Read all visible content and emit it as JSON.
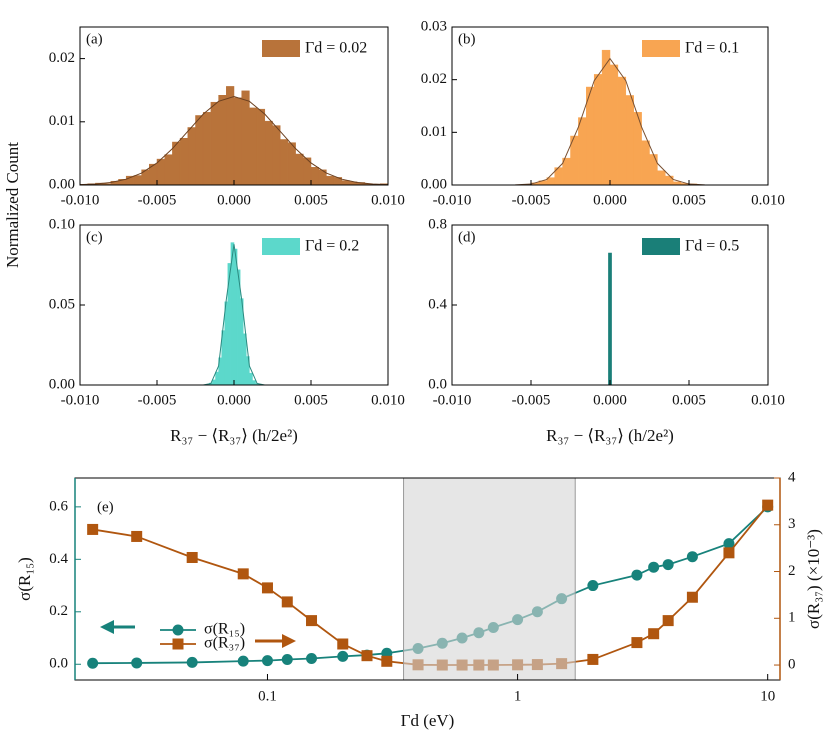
{
  "chart_data": [
    {
      "type": "histogram",
      "panel_label": "(a)",
      "ylabel": "Normalized Count",
      "bins": [
        -0.01,
        -0.0095,
        -0.009,
        -0.0085,
        -0.008,
        -0.0075,
        -0.007,
        -0.0065,
        -0.006,
        -0.0055,
        -0.005,
        -0.0045,
        -0.004,
        -0.0035,
        -0.003,
        -0.0025,
        -0.002,
        -0.0015,
        -0.001,
        -0.0005,
        0,
        0.0005,
        0.001,
        0.0015,
        0.002,
        0.0025,
        0.003,
        0.0035,
        0.004,
        0.0045,
        0.005,
        0.0055,
        0.006,
        0.0065,
        0.007,
        0.0075,
        0.008,
        0.0085,
        0.009,
        0.0095,
        0.01
      ],
      "series": [
        {
          "name": "Γd = 0.02",
          "color": "#b8733a",
          "values": [
            0.0001,
            0.0002,
            0.0003,
            0.0002,
            0.0006,
            0.0009,
            0.0014,
            0.0015,
            0.0024,
            0.0033,
            0.0041,
            0.0048,
            0.0068,
            0.0074,
            0.0091,
            0.011,
            0.0115,
            0.0131,
            0.0142,
            0.0156,
            0.0138,
            0.0149,
            0.0122,
            0.012,
            0.0101,
            0.0094,
            0.0072,
            0.0067,
            0.0049,
            0.0043,
            0.0028,
            0.0024,
            0.0014,
            0.0012,
            0.0007,
            0.0005,
            0.0004,
            0.0002,
            0.0001,
            0.0002
          ]
        }
      ],
      "fit": {
        "color": "#6b4020",
        "x": [
          -0.01,
          -0.009,
          -0.008,
          -0.007,
          -0.006,
          -0.005,
          -0.004,
          -0.003,
          -0.002,
          -0.001,
          0,
          0.001,
          0.002,
          0.003,
          0.004,
          0.005,
          0.006,
          0.007,
          0.008,
          0.009,
          0.01
        ],
        "values": [
          5e-05,
          0.00016,
          0.0004,
          0.00092,
          0.00189,
          0.00349,
          0.00575,
          0.00849,
          0.01121,
          0.01324,
          0.014,
          0.01324,
          0.01121,
          0.00849,
          0.00575,
          0.00349,
          0.00189,
          0.00092,
          0.0004,
          0.00016,
          5e-05
        ]
      },
      "xlim": [
        -0.01,
        0.01
      ],
      "xticks": [
        {
          "value": -0.01,
          "label": "-0.010"
        },
        {
          "value": -0.005,
          "label": "-0.005"
        },
        {
          "value": 0,
          "label": "0.000"
        },
        {
          "value": 0.005,
          "label": "0.005"
        },
        {
          "value": 0.01,
          "label": "0.010"
        }
      ],
      "ylim": [
        0,
        0.025
      ],
      "yticks": [
        {
          "value": 0,
          "label": "0.00"
        },
        {
          "value": 0.01,
          "label": "0.01"
        },
        {
          "value": 0.02,
          "label": "0.02"
        }
      ]
    },
    {
      "type": "histogram",
      "panel_label": "(b)",
      "bins": [
        -0.0055,
        -0.005,
        -0.0045,
        -0.004,
        -0.0035,
        -0.003,
        -0.0025,
        -0.002,
        -0.0015,
        -0.001,
        -0.0005,
        0,
        0.0005,
        0.001,
        0.0015,
        0.002,
        0.0025,
        0.003,
        0.0035,
        0.004,
        0.0045,
        0.005,
        0.0055
      ],
      "series": [
        {
          "name": "Γd = 0.1",
          "color": "#f8a552",
          "values": [
            0.0001,
            0.0004,
            0.0008,
            0.0014,
            0.0033,
            0.0051,
            0.0093,
            0.0128,
            0.0186,
            0.021,
            0.0256,
            0.0228,
            0.0205,
            0.017,
            0.0138,
            0.0084,
            0.0058,
            0.0027,
            0.0017,
            0.0006,
            0.0003,
            0.0002
          ]
        }
      ],
      "fit": {
        "color": "#7a5030",
        "x": [
          -0.006,
          -0.005,
          -0.004,
          -0.003,
          -0.002,
          -0.001,
          0,
          0.001,
          0.002,
          0.003,
          0.004,
          0.005,
          0.006
        ],
        "values": [
          2e-05,
          0.00018,
          0.00105,
          0.0041,
          0.011,
          0.0198,
          0.024,
          0.0198,
          0.011,
          0.0041,
          0.00105,
          0.00018,
          2e-05
        ]
      },
      "xlim": [
        -0.01,
        0.01
      ],
      "xticks": [
        {
          "value": -0.01,
          "label": "-0.010"
        },
        {
          "value": -0.005,
          "label": "-0.005"
        },
        {
          "value": 0,
          "label": "0.000"
        },
        {
          "value": 0.005,
          "label": "0.005"
        },
        {
          "value": 0.01,
          "label": "0.010"
        }
      ],
      "ylim": [
        0,
        0.03
      ],
      "yticks": [
        {
          "value": 0,
          "label": "0.00"
        },
        {
          "value": 0.01,
          "label": "0.01"
        },
        {
          "value": 0.02,
          "label": "0.02"
        },
        {
          "value": 0.03,
          "label": "0.03"
        }
      ]
    },
    {
      "type": "histogram",
      "panel_label": "(c)",
      "xlabel": "R₃₇ − ⟨R₃₇⟩ (h/2e²)",
      "bins": [
        -0.0018,
        -0.0016,
        -0.0014,
        -0.0012,
        -0.001,
        -0.0008,
        -0.0006,
        -0.0004,
        -0.0002,
        0,
        0.0002,
        0.0004,
        0.0006,
        0.0008,
        0.001,
        0.0012,
        0.0014,
        0.0016,
        0.0018
      ],
      "series": [
        {
          "name": "Γd = 0.2",
          "color": "#5cd8cb",
          "values": [
            0.0003,
            0.0012,
            0.0032,
            0.0081,
            0.017,
            0.034,
            0.052,
            0.076,
            0.089,
            0.085,
            0.072,
            0.054,
            0.032,
            0.0178,
            0.0074,
            0.0028,
            0.0009,
            0.0002
          ]
        }
      ],
      "fit": {
        "color": "#2a8a80",
        "x": [
          -0.002,
          -0.0015,
          -0.001,
          -0.0005,
          0,
          0.0005,
          0.001,
          0.0015,
          0.002
        ],
        "values": [
          3e-05,
          0.00098,
          0.0119,
          0.0534,
          0.088,
          0.0534,
          0.0119,
          0.00098,
          3e-05
        ]
      },
      "xlim": [
        -0.01,
        0.01
      ],
      "xticks": [
        {
          "value": -0.01,
          "label": "-0.010"
        },
        {
          "value": -0.005,
          "label": "-0.005"
        },
        {
          "value": 0,
          "label": "0.000"
        },
        {
          "value": 0.005,
          "label": "0.005"
        },
        {
          "value": 0.01,
          "label": "0.010"
        }
      ],
      "ylim": [
        0,
        0.1
      ],
      "yticks": [
        {
          "value": 0,
          "label": "0.00"
        },
        {
          "value": 0.05,
          "label": "0.05"
        },
        {
          "value": 0.1,
          "label": "0.10"
        }
      ]
    },
    {
      "type": "histogram",
      "panel_label": "(d)",
      "xlabel": "R₃₇ − ⟨R₃₇⟩ (h/2e²)",
      "bins": [
        -0.0001,
        0.0001
      ],
      "series": [
        {
          "name": "Γd = 0.5",
          "color": "#1a7f78",
          "values": [
            0.66
          ]
        }
      ],
      "xlim": [
        -0.01,
        0.01
      ],
      "xticks": [
        {
          "value": -0.01,
          "label": "-0.010"
        },
        {
          "value": -0.005,
          "label": "-0.005"
        },
        {
          "value": 0,
          "label": "0.000"
        },
        {
          "value": 0.005,
          "label": "0.005"
        },
        {
          "value": 0.01,
          "label": "0.010"
        }
      ],
      "ylim": [
        0,
        0.8
      ],
      "yticks": [
        {
          "value": 0,
          "label": "0.0"
        },
        0.4,
        0.8
      ]
    },
    {
      "type": "line",
      "panel_label": "(e)",
      "xscale": "log",
      "xlabel": "Γd (eV)",
      "ylabel": "σ(R₁₅)",
      "y2label": "σ(R₃₇) (×10⁻³)",
      "x": [
        0.02,
        0.03,
        0.05,
        0.08,
        0.1,
        0.12,
        0.15,
        0.2,
        0.25,
        0.3,
        0.4,
        0.5,
        0.6,
        0.7,
        0.8,
        1,
        1.2,
        1.5,
        2,
        3,
        3.5,
        4,
        5,
        7,
        10
      ],
      "series": [
        {
          "name": "σ(R₁₅)",
          "color": "#17827b",
          "marker": "circle",
          "values": [
            0.004,
            0.005,
            0.007,
            0.012,
            0.014,
            0.018,
            0.022,
            0.03,
            0.035,
            0.042,
            0.06,
            0.08,
            0.1,
            0.12,
            0.14,
            0.17,
            0.2,
            0.25,
            0.3,
            0.34,
            0.37,
            0.38,
            0.41,
            0.46,
            0.6
          ]
        },
        {
          "name": "σ(R₃₇)",
          "color": "#b0560f",
          "marker": "square",
          "axis": "y2",
          "values": [
            2.9,
            2.75,
            2.3,
            1.95,
            1.65,
            1.35,
            0.95,
            0.45,
            0.2,
            0.08,
            0.005,
            0,
            0,
            0,
            0,
            0.005,
            0.01,
            0.03,
            0.12,
            0.48,
            0.67,
            0.95,
            1.45,
            2.4,
            3.42
          ]
        }
      ],
      "highlight": [
        0.35,
        1.7
      ],
      "xlim": [
        0.017,
        11.2
      ],
      "xticks": [
        0.1,
        1,
        10
      ],
      "ylim": [
        -0.06,
        0.71
      ],
      "yticks": [
        {
          "value": 0,
          "label": "0.0"
        },
        0.2,
        0.4,
        0.6
      ],
      "y2lim": [
        -0.32,
        4
      ],
      "y2ticks": [
        0,
        1,
        2,
        3,
        4
      ]
    }
  ]
}
